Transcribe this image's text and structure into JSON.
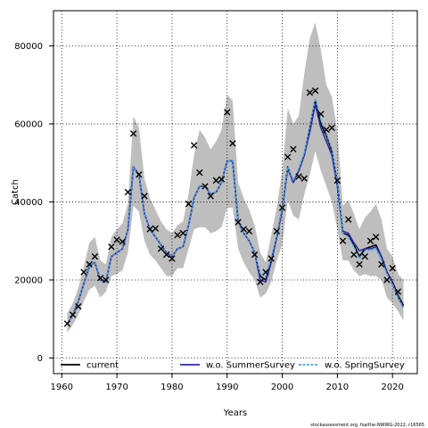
{
  "chart_data": {
    "type": "line",
    "xlabel": "Years",
    "ylabel": "Catch",
    "xlim": [
      1958.5,
      2024.5
    ],
    "ylim": [
      -4000,
      89000
    ],
    "x_ticks": [
      1960,
      1970,
      1980,
      1990,
      2000,
      2010,
      2020
    ],
    "y_ticks": [
      0,
      20000,
      40000,
      60000,
      80000
    ],
    "grid": true,
    "legend_position": "bottom",
    "colors": {
      "band": "#bebebe",
      "current": "#000000",
      "summer": "#2c2ca0",
      "spring": "#4aa6e0",
      "observed": "#000000"
    },
    "years": [
      1961,
      1962,
      1963,
      1964,
      1965,
      1966,
      1967,
      1968,
      1969,
      1970,
      1971,
      1972,
      1973,
      1974,
      1975,
      1976,
      1977,
      1978,
      1979,
      1980,
      1981,
      1982,
      1983,
      1984,
      1985,
      1986,
      1987,
      1988,
      1989,
      1990,
      1991,
      1992,
      1993,
      1994,
      1995,
      1996,
      1997,
      1998,
      1999,
      2000,
      2001,
      2002,
      2003,
      2004,
      2005,
      2006,
      2007,
      2008,
      2009,
      2010,
      2011,
      2012,
      2013,
      2014,
      2015,
      2016,
      2017,
      2018,
      2019,
      2020,
      2021,
      2022
    ],
    "series": [
      {
        "name": "current",
        "values": [
          8800,
          11000,
          14500,
          19000,
          23500,
          24500,
          20000,
          19500,
          26000,
          27000,
          28000,
          33000,
          49000,
          47000,
          37000,
          33000,
          31000,
          29000,
          27000,
          26000,
          28000,
          28500,
          34000,
          41000,
          44000,
          44000,
          42000,
          42500,
          45000,
          50500,
          50500,
          35000,
          32000,
          30000,
          27000,
          21000,
          20000,
          25000,
          31000,
          38000,
          49000,
          45000,
          48000,
          52000,
          59000,
          66000,
          60000,
          57000,
          53000,
          45000,
          32000,
          31500,
          29000,
          26000,
          28000,
          28500,
          29000,
          26000,
          22000,
          19500,
          16000,
          13500
        ]
      },
      {
        "name": "w.o. SummerSurvey",
        "values": [
          8800,
          11000,
          14500,
          19000,
          23500,
          24500,
          20000,
          19500,
          26000,
          27000,
          28000,
          33000,
          49000,
          47000,
          37000,
          33000,
          31000,
          29000,
          27000,
          26000,
          28000,
          28500,
          34000,
          41000,
          44000,
          44000,
          42000,
          42500,
          45000,
          50500,
          50500,
          35000,
          32000,
          30000,
          27000,
          20000,
          19500,
          24500,
          31000,
          38000,
          48500,
          45000,
          48000,
          52000,
          58000,
          65000,
          59000,
          55500,
          52000,
          44000,
          32500,
          32000,
          29500,
          27500,
          28000,
          28000,
          28500,
          26000,
          22000,
          19000,
          15500,
          13000
        ]
      },
      {
        "name": "w.o. SpringSurvey",
        "values": [
          8800,
          11000,
          14500,
          19000,
          23500,
          24500,
          20000,
          19500,
          26000,
          27000,
          28000,
          33000,
          49000,
          47000,
          37000,
          33000,
          31000,
          29000,
          27000,
          26000,
          28000,
          28500,
          34000,
          41000,
          44000,
          44000,
          42000,
          42500,
          45000,
          50500,
          50500,
          35000,
          32000,
          30000,
          27000,
          21500,
          21000,
          25500,
          31500,
          38500,
          49000,
          45500,
          48500,
          52500,
          59500,
          66500,
          61000,
          57500,
          53500,
          45500,
          32000,
          31000,
          28500,
          25500,
          27500,
          27500,
          28000,
          25000,
          21500,
          19000,
          15500,
          13000
        ]
      }
    ],
    "band_lower": [
      6500,
      8500,
      11000,
      14500,
      17500,
      18500,
      15500,
      17000,
      21000,
      21500,
      22500,
      27000,
      39000,
      37500,
      30000,
      26500,
      25000,
      23000,
      21000,
      21000,
      23000,
      23000,
      28000,
      33000,
      33500,
      33500,
      32000,
      32500,
      33500,
      38500,
      38500,
      28000,
      24500,
      22000,
      20000,
      15500,
      16500,
      19500,
      25000,
      29000,
      40500,
      36500,
      35500,
      42000,
      47000,
      53000,
      48000,
      44000,
      40000,
      33000,
      25000,
      25000,
      22500,
      21000,
      21500,
      21000,
      21000,
      20000,
      15500,
      14000,
      12000,
      9500
    ],
    "band_upper": [
      11500,
      14000,
      18000,
      23500,
      29500,
      31000,
      25000,
      24000,
      31000,
      33000,
      34500,
      39500,
      62000,
      59000,
      46000,
      41000,
      38000,
      35000,
      33000,
      32000,
      34000,
      35000,
      42000,
      52000,
      58500,
      56500,
      53500,
      55500,
      58500,
      67500,
      66000,
      45000,
      41000,
      38000,
      34000,
      27000,
      24500,
      31500,
      38500,
      48000,
      64000,
      60000,
      62000,
      73000,
      82000,
      86000,
      79000,
      70000,
      67000,
      58000,
      39000,
      40500,
      37000,
      33000,
      36000,
      37500,
      39500,
      35500,
      28000,
      26000,
      21500,
      20000
    ],
    "observed": [
      {
        "x": 1961,
        "y": 8800
      },
      {
        "x": 1962,
        "y": 11100
      },
      {
        "x": 1963,
        "y": 13200
      },
      {
        "x": 1964,
        "y": 22000
      },
      {
        "x": 1965,
        "y": 24000
      },
      {
        "x": 1966,
        "y": 26000
      },
      {
        "x": 1967,
        "y": 20500
      },
      {
        "x": 1968,
        "y": 20000
      },
      {
        "x": 1969,
        "y": 28500
      },
      {
        "x": 1970,
        "y": 30300
      },
      {
        "x": 1971,
        "y": 29800
      },
      {
        "x": 1972,
        "y": 42500
      },
      {
        "x": 1973,
        "y": 57500
      },
      {
        "x": 1974,
        "y": 47000
      },
      {
        "x": 1975,
        "y": 41500
      },
      {
        "x": 1976,
        "y": 33000
      },
      {
        "x": 1977,
        "y": 33200
      },
      {
        "x": 1978,
        "y": 28000
      },
      {
        "x": 1979,
        "y": 26500
      },
      {
        "x": 1980,
        "y": 25500
      },
      {
        "x": 1981,
        "y": 31500
      },
      {
        "x": 1982,
        "y": 32000
      },
      {
        "x": 1983,
        "y": 39500
      },
      {
        "x": 1984,
        "y": 54500
      },
      {
        "x": 1985,
        "y": 47500
      },
      {
        "x": 1986,
        "y": 44000
      },
      {
        "x": 1987,
        "y": 41500
      },
      {
        "x": 1988,
        "y": 45500
      },
      {
        "x": 1989,
        "y": 45800
      },
      {
        "x": 1990,
        "y": 63000
      },
      {
        "x": 1991,
        "y": 55000
      },
      {
        "x": 1992,
        "y": 34800
      },
      {
        "x": 1993,
        "y": 33000
      },
      {
        "x": 1994,
        "y": 32500
      },
      {
        "x": 1995,
        "y": 26500
      },
      {
        "x": 1996,
        "y": 19500
      },
      {
        "x": 1997,
        "y": 22000
      },
      {
        "x": 1998,
        "y": 25500
      },
      {
        "x": 1999,
        "y": 32500
      },
      {
        "x": 2000,
        "y": 38500
      },
      {
        "x": 2001,
        "y": 51500
      },
      {
        "x": 2002,
        "y": 53500
      },
      {
        "x": 2003,
        "y": 46500
      },
      {
        "x": 2004,
        "y": 46000
      },
      {
        "x": 2005,
        "y": 68000
      },
      {
        "x": 2006,
        "y": 68500
      },
      {
        "x": 2007,
        "y": 62500
      },
      {
        "x": 2008,
        "y": 58500
      },
      {
        "x": 2009,
        "y": 59000
      },
      {
        "x": 2010,
        "y": 45500
      },
      {
        "x": 2011,
        "y": 30000
      },
      {
        "x": 2012,
        "y": 35500
      },
      {
        "x": 2013,
        "y": 26500
      },
      {
        "x": 2014,
        "y": 24000
      },
      {
        "x": 2015,
        "y": 26000
      },
      {
        "x": 2016,
        "y": 30000
      },
      {
        "x": 2017,
        "y": 31000
      },
      {
        "x": 2018,
        "y": 24000
      },
      {
        "x": 2019,
        "y": 20000
      },
      {
        "x": 2020,
        "y": 23000
      },
      {
        "x": 2021,
        "y": 17000
      }
    ]
  },
  "legend": [
    {
      "label": "current",
      "style": "solid",
      "color": "#000000"
    },
    {
      "label": "w.o. SummerSurvey",
      "style": "solid",
      "color": "#2c2ca0"
    },
    {
      "label": "w.o. SpringSurvey",
      "style": "dashed",
      "color": "#4aa6e0"
    }
  ],
  "footer": "stockassessment.org, fsaithe-NWWG-2022, r16565"
}
